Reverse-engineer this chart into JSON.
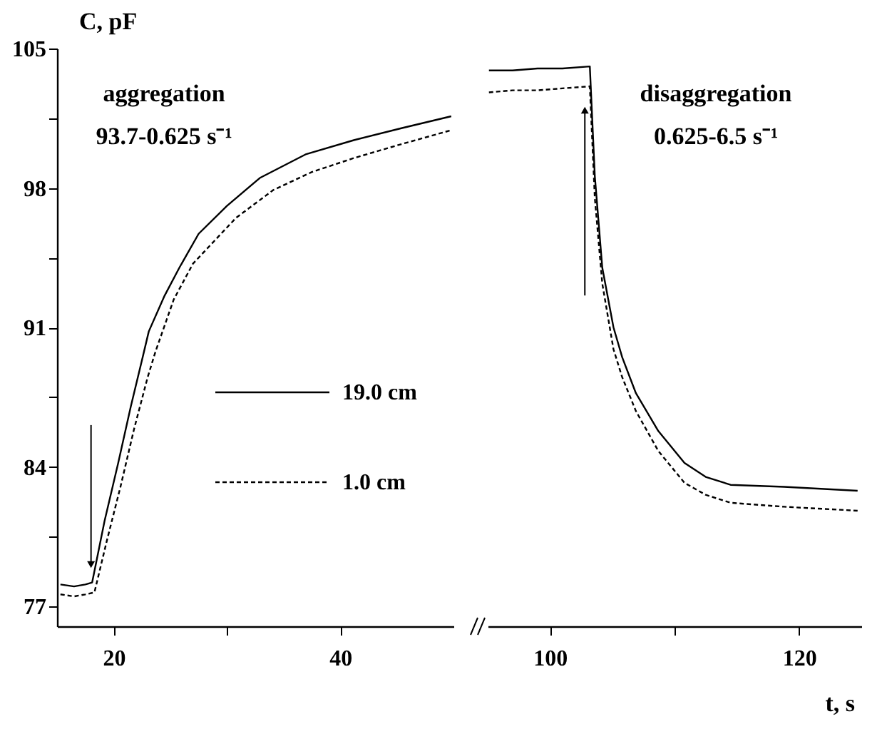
{
  "chart_data": [
    {
      "type": "line",
      "ylabel": "C, pF",
      "annotations": [
        "aggregation",
        "93.7-0.625 s⁻¹"
      ],
      "xlim": [
        15,
        50
      ],
      "xticks": [
        20,
        {
          "value": 30,
          "label": null
        },
        40
      ],
      "ylim": [
        76,
        105
      ],
      "yticks": [
        77,
        {
          "value": 80.5,
          "label": null
        },
        84,
        {
          "value": 87.5,
          "label": null
        },
        91,
        {
          "value": 94.5,
          "label": null
        },
        98,
        {
          "value": 101.5,
          "label": null
        },
        105
      ],
      "legend": "right",
      "series": [
        {
          "name": "19.0 cm",
          "color": "#000000",
          "line_style": "solid",
          "x": [
            15.3,
            16.5,
            17.5,
            18.1,
            19.2,
            20.4,
            21.5,
            22.6,
            23.1,
            24.5,
            25.8,
            27.5,
            30,
            32.9,
            37,
            41.2,
            45.4,
            49.8
          ],
          "values": [
            78.1,
            78.0,
            78.1,
            78.2,
            81.3,
            84.2,
            87.0,
            89.6,
            90.8,
            92.6,
            94.0,
            95.7,
            97.1,
            98.5,
            99.7,
            100.4,
            101.0,
            101.6
          ]
        },
        {
          "name": "1.0 cm",
          "color": "#000000",
          "line_style": "dashed",
          "x": [
            15.3,
            16.5,
            17.5,
            18.3,
            19.4,
            20.6,
            21.8,
            23.0,
            23.7,
            25.3,
            27,
            30.8,
            34.1,
            37.5,
            41.2,
            45.4,
            49.8
          ],
          "values": [
            77.6,
            77.5,
            77.6,
            77.7,
            80.3,
            83.0,
            85.9,
            88.5,
            89.8,
            92.4,
            94.2,
            96.5,
            97.9,
            98.8,
            99.5,
            100.2,
            100.9
          ]
        }
      ]
    },
    {
      "type": "line",
      "xlabel": "t, s",
      "annotations": [
        "disaggregation",
        "0.625-6.5 s⁻¹"
      ],
      "xlim": [
        95,
        125
      ],
      "xticks": [
        100,
        {
          "value": 110,
          "label": null
        },
        120
      ],
      "ylim": [
        76,
        105
      ],
      "tick_labels": "x",
      "series": [
        {
          "color": "#000000",
          "line_style": "solid",
          "x": [
            95.1,
            97,
            99,
            101,
            103.2,
            103.6,
            104.2,
            105.1,
            105.8,
            106.9,
            108.7,
            110.8,
            112.5,
            114.5,
            118.8,
            124.7
          ],
          "values": [
            103.9,
            103.9,
            104.0,
            104.0,
            104.1,
            98.6,
            94.0,
            91.0,
            89.5,
            87.7,
            85.8,
            84.2,
            83.5,
            83.1,
            83.0,
            82.8
          ]
        },
        {
          "color": "#000000",
          "line_style": "dashed",
          "x": [
            95.1,
            97,
            99,
            101,
            103.2,
            103.6,
            104.2,
            105.1,
            105.8,
            106.9,
            108.7,
            110.8,
            112.5,
            114.5,
            118.8,
            124.7
          ],
          "values": [
            102.8,
            102.9,
            102.9,
            103.0,
            103.1,
            97.5,
            93.2,
            89.9,
            88.5,
            86.8,
            84.8,
            83.2,
            82.6,
            82.2,
            82.0,
            81.8
          ]
        }
      ]
    }
  ]
}
